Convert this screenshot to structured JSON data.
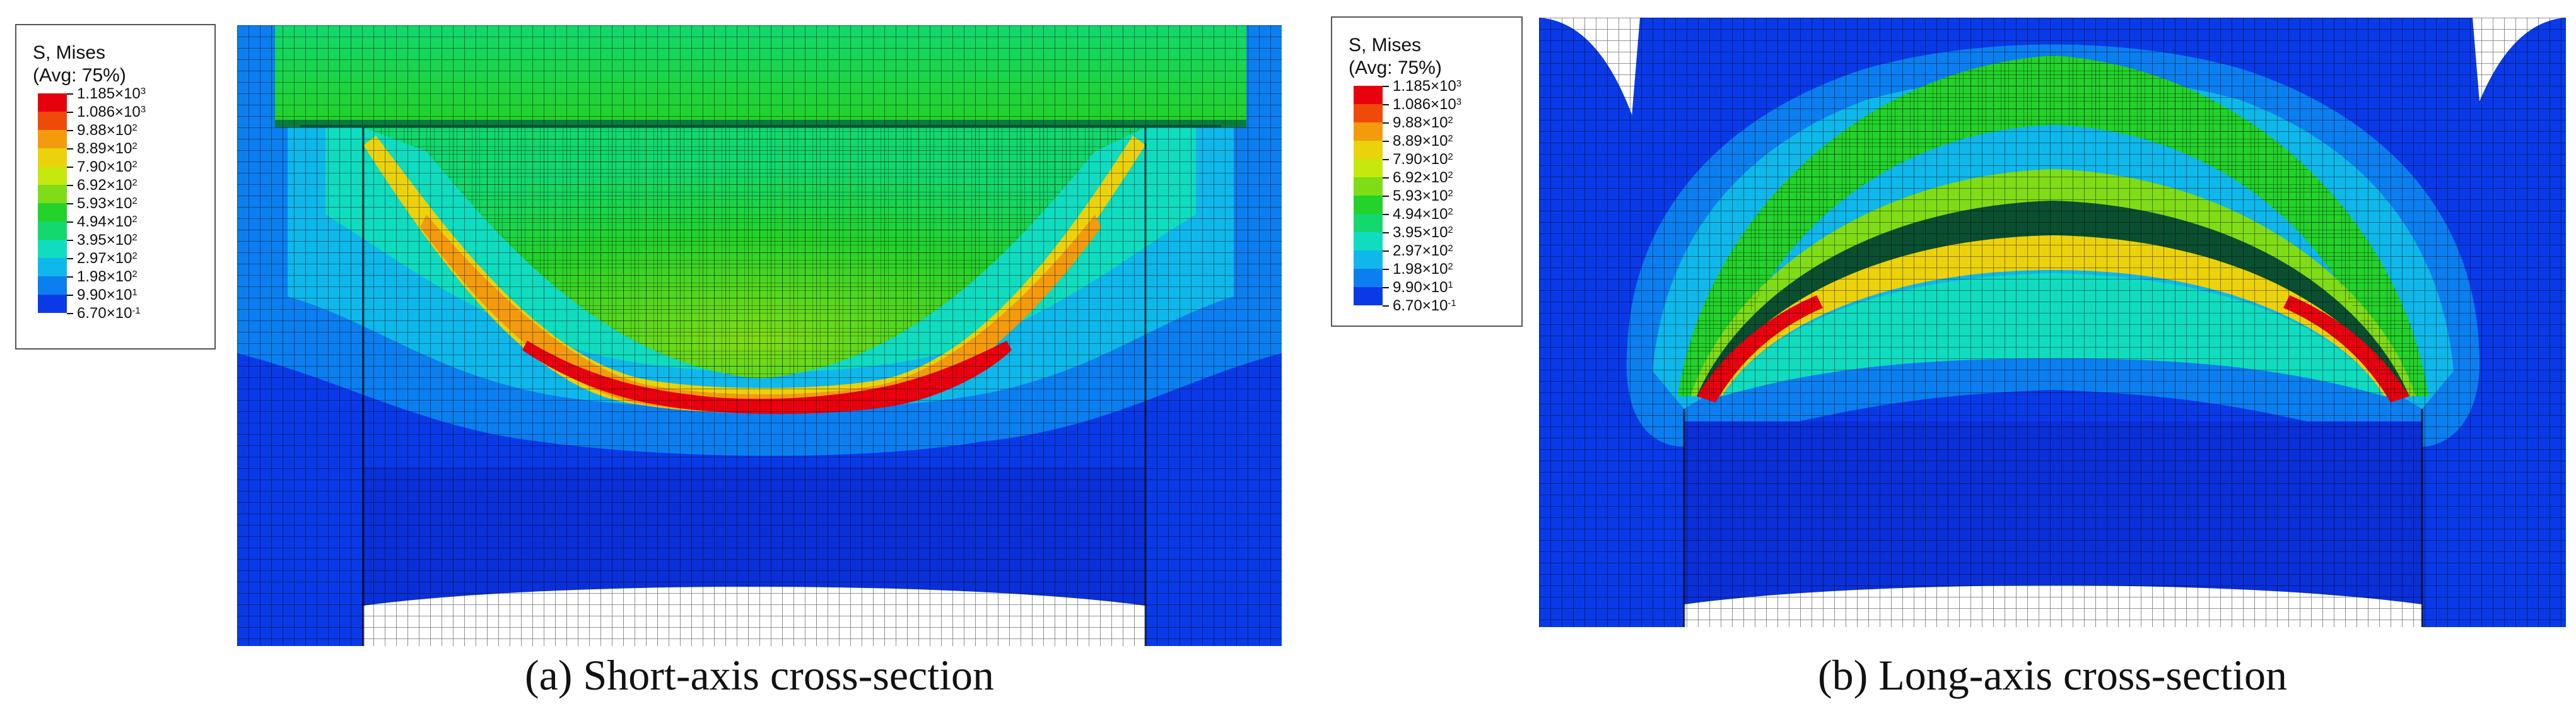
{
  "legend": {
    "title": "S, Mises",
    "subtitle": "(Avg: 75%)",
    "entries": [
      {
        "mant": "1.185",
        "exp": "3",
        "color": "#e8000f"
      },
      {
        "mant": "1.086",
        "exp": "3",
        "color": "#f04a0a"
      },
      {
        "mant": "9.88",
        "exp": "2",
        "color": "#f39b0c"
      },
      {
        "mant": "8.89",
        "exp": "2",
        "color": "#ecd20b"
      },
      {
        "mant": "7.90",
        "exp": "2",
        "color": "#c7e80d"
      },
      {
        "mant": "6.92",
        "exp": "2",
        "color": "#7fdc16"
      },
      {
        "mant": "5.93",
        "exp": "2",
        "color": "#23d22a"
      },
      {
        "mant": "4.94",
        "exp": "2",
        "color": "#12d86d"
      },
      {
        "mant": "3.95",
        "exp": "2",
        "color": "#10dcc0"
      },
      {
        "mant": "2.97",
        "exp": "2",
        "color": "#0fb8ea"
      },
      {
        "mant": "1.98",
        "exp": "2",
        "color": "#0c7ff0"
      },
      {
        "mant": "9.90",
        "exp": "1",
        "color": "#0a3ae8"
      },
      {
        "mant": "6.70",
        "exp": "-1",
        "color": ""
      }
    ]
  },
  "panels": [
    {
      "caption": "(a) Short-axis cross-section"
    },
    {
      "caption": "(b) Long-axis cross-section"
    }
  ]
}
